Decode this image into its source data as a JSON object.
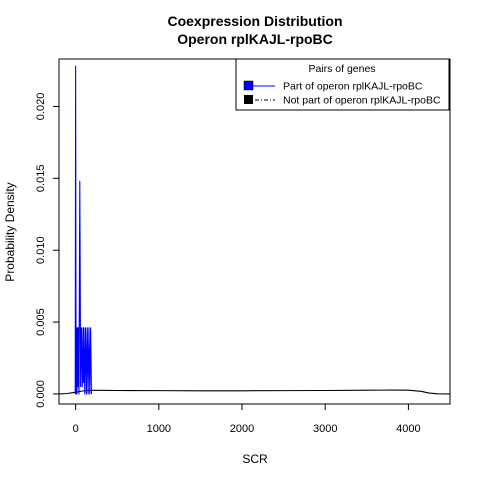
{
  "chart_data": {
    "type": "line",
    "title": [
      "Coexpression Distribution",
      "Operon rplKAJL-rpoBC"
    ],
    "xlabel": "SCR",
    "ylabel": "Probability Density",
    "xlim": [
      -200,
      4500
    ],
    "ylim": [
      -0.0007,
      0.0233
    ],
    "xticks": [
      0,
      1000,
      2000,
      3000,
      4000
    ],
    "xtick_labels": [
      "0",
      "1000",
      "2000",
      "3000",
      "4000"
    ],
    "yticks": [
      0.0,
      0.005,
      0.01,
      0.015,
      0.02
    ],
    "ytick_labels": [
      "0.000",
      "0.005",
      "0.010",
      "0.015",
      "0.020"
    ],
    "legend": {
      "title": "Pairs of genes",
      "position": "top-right",
      "entries": [
        "Part of operon rplKAJL-rpoBC",
        "Not part of operon rplKAJL-rpoBC"
      ]
    },
    "series": [
      {
        "name": "Part of operon rplKAJL-rpoBC",
        "color": "#0000ff",
        "line_style": "solid",
        "x": [
          -5,
          0,
          5,
          10,
          15,
          20,
          25,
          30,
          40,
          50,
          60,
          70,
          80,
          90,
          95,
          100,
          110,
          120,
          130,
          140,
          150,
          160,
          170,
          180,
          190
        ],
        "y": [
          0.0,
          0.0228,
          0.0,
          0.0046,
          0.0,
          0.0046,
          0.0005,
          0.0046,
          0.0,
          0.0148,
          0.0005,
          0.0046,
          0.0005,
          0.0046,
          0.0008,
          0.0046,
          0.0,
          0.0046,
          0.0,
          0.0046,
          0.0,
          0.0046,
          0.0,
          0.0046,
          0.0
        ]
      },
      {
        "name": "Not part of operon rplKAJL-rpoBC",
        "color": "#000000",
        "line_style": "dashdot",
        "x": [
          -200,
          -100,
          0,
          100,
          200,
          300,
          500,
          1000,
          1500,
          2000,
          2500,
          3000,
          3500,
          3800,
          4000,
          4150,
          4250,
          4350,
          4500
        ],
        "y": [
          0.0,
          3e-05,
          0.00012,
          0.00022,
          0.00025,
          0.00025,
          0.00024,
          0.00023,
          0.00022,
          0.00022,
          0.00023,
          0.00024,
          0.00026,
          0.00027,
          0.00026,
          0.00018,
          6e-05,
          1e-05,
          0.0
        ]
      }
    ]
  }
}
